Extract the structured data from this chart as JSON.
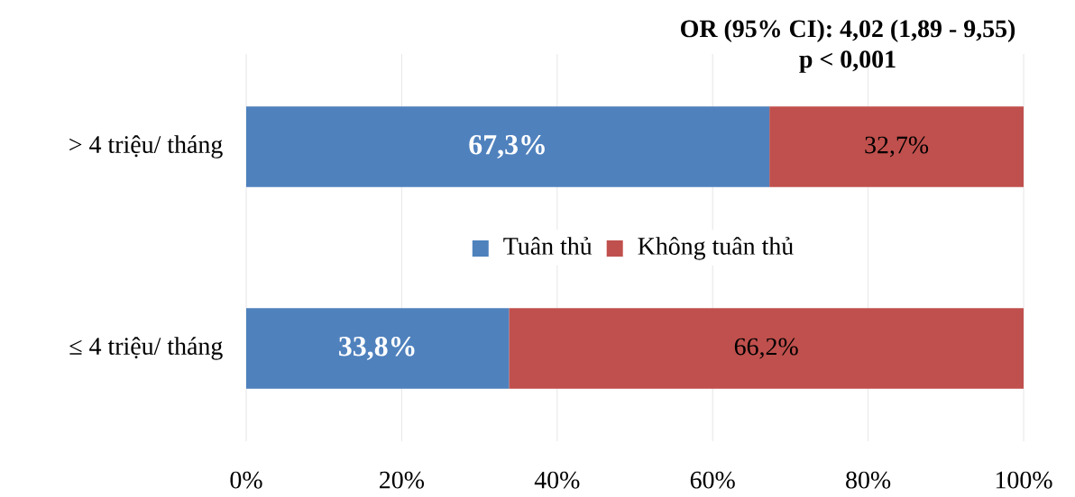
{
  "chart_data": {
    "type": "bar",
    "orientation": "horizontal",
    "stacked": true,
    "categories": [
      "> 4 triệu/ tháng",
      "≤ 4 triệu/ tháng"
    ],
    "series": [
      {
        "name": "Tuân thủ",
        "color": "#4f81bd",
        "values": [
          67.3,
          33.8
        ],
        "value_labels": [
          "67,3%",
          "33,8%"
        ]
      },
      {
        "name": "Không tuân thủ",
        "color": "#c0504d",
        "values": [
          32.7,
          66.2
        ],
        "value_labels": [
          "32,7%",
          "66,2%"
        ]
      }
    ],
    "xlim": [
      0,
      100
    ],
    "xticks": [
      {
        "value": 0,
        "label": "0%"
      },
      {
        "value": 20,
        "label": "20%"
      },
      {
        "value": 40,
        "label": "40%"
      },
      {
        "value": 60,
        "label": "60%"
      },
      {
        "value": 80,
        "label": "80%"
      },
      {
        "value": 100,
        "label": "100%"
      }
    ],
    "grid": "x",
    "legend": "center",
    "annotations": [
      "OR (95% CI): 4,02 (1,89 - 9,55)",
      "p < 0,001"
    ]
  }
}
